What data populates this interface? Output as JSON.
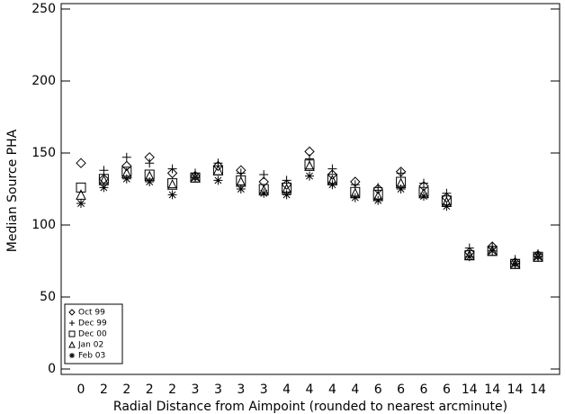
{
  "chart_data": {
    "type": "scatter",
    "x_label": "Radial Distance from Aimpoint (rounded to nearest arcminute)",
    "y_label": "Median Source PHA",
    "categories": [
      "0",
      "2",
      "2",
      "2",
      "2",
      "3",
      "3",
      "3",
      "3",
      "4",
      "4",
      "4",
      "4",
      "6",
      "6",
      "6",
      "6",
      "14",
      "14",
      "14",
      "14"
    ],
    "series": [
      {
        "name": "Oct 99",
        "color": "#000000",
        "symbol": "diamond",
        "values": [
          143,
          132,
          141,
          147,
          136,
          134,
          141,
          138,
          130,
          128,
          151,
          135,
          130,
          125,
          137,
          127,
          119,
          81,
          85,
          74,
          79
        ]
      },
      {
        "name": "Dec 99",
        "color": "#000000",
        "symbol": "plus",
        "values": [
          null,
          138,
          147,
          143,
          139,
          136,
          143,
          136,
          135,
          131,
          146,
          139,
          128,
          126,
          136,
          129,
          122,
          84,
          85,
          76,
          80
        ]
      },
      {
        "name": "Dec 00",
        "color": "#000000",
        "symbol": "square",
        "values": [
          126,
          132,
          137,
          135,
          129,
          133,
          138,
          131,
          125,
          126,
          142,
          132,
          123,
          121,
          130,
          123,
          117,
          79,
          82,
          73,
          78
        ]
      },
      {
        "name": "Jan 02",
        "color": "#000000",
        "symbol": "triangle",
        "values": [
          121,
          131,
          136,
          134,
          128,
          133,
          138,
          130,
          124,
          125,
          141,
          131,
          122,
          120,
          129,
          122,
          116,
          79,
          82,
          73,
          78
        ]
      },
      {
        "name": "Feb 03",
        "color": "#000000",
        "symbol": "asterisk",
        "values": [
          115,
          126,
          132,
          130,
          121,
          133,
          131,
          125,
          122,
          121,
          134,
          128,
          119,
          117,
          125,
          120,
          113,
          78,
          82,
          73,
          78
        ]
      }
    ],
    "ylim": [
      0,
      250
    ],
    "yticks": [
      0,
      50,
      100,
      150,
      200,
      250
    ],
    "legend": "lower left"
  }
}
